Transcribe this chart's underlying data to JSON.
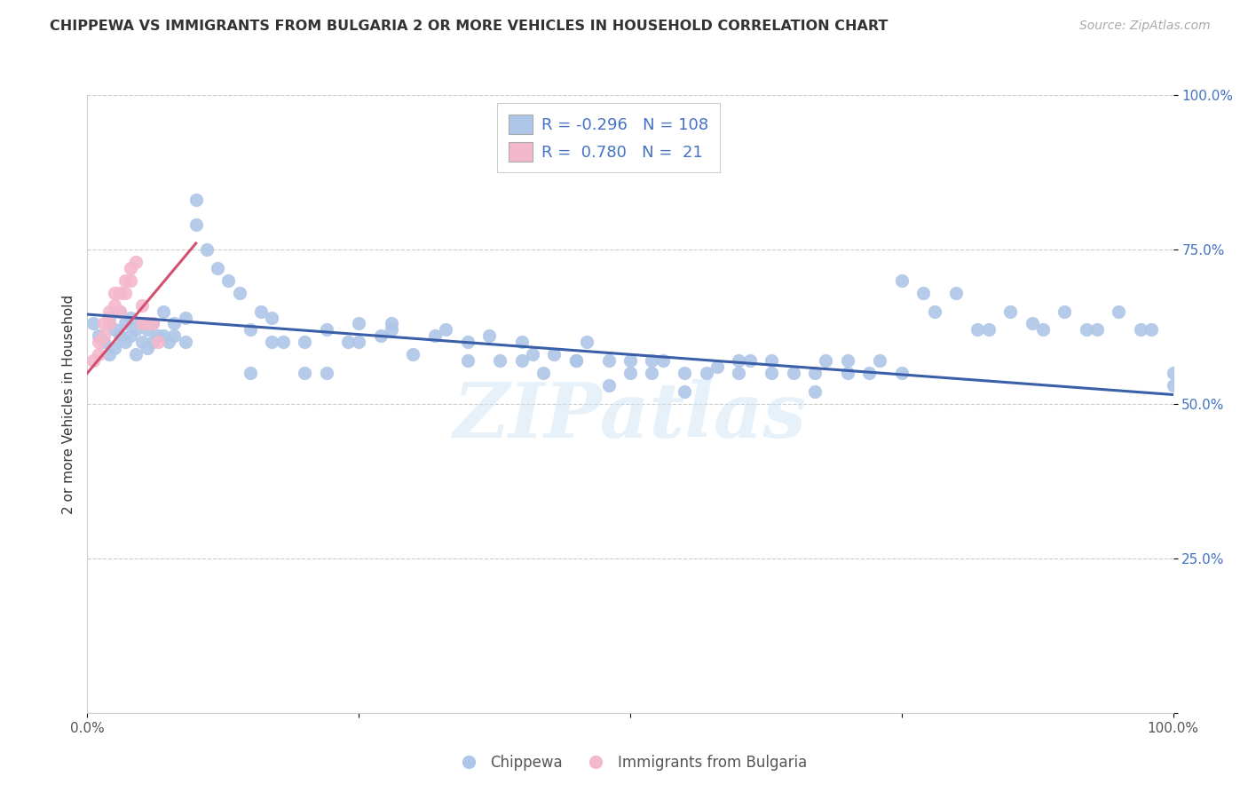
{
  "title": "CHIPPEWA VS IMMIGRANTS FROM BULGARIA 2 OR MORE VEHICLES IN HOUSEHOLD CORRELATION CHART",
  "source": "Source: ZipAtlas.com",
  "ylabel": "2 or more Vehicles in Household",
  "xlim": [
    0.0,
    1.0
  ],
  "ylim": [
    0.0,
    1.0
  ],
  "chippewa_color": "#aec6e8",
  "bulgaria_color": "#f4b8cc",
  "chippewa_line_color": "#3a5fa8",
  "bulgaria_line_color": "#d45070",
  "legend_r1": "-0.296",
  "legend_n1": "108",
  "legend_r2": "0.780",
  "legend_n2": "21",
  "legend_label1": "Chippewa",
  "legend_label2": "Immigrants from Bulgaria",
  "watermark": "ZIPatlas",
  "background_color": "#ffffff",
  "chippewa_x": [
    0.005,
    0.01,
    0.015,
    0.02,
    0.02,
    0.025,
    0.025,
    0.03,
    0.03,
    0.035,
    0.035,
    0.04,
    0.04,
    0.045,
    0.045,
    0.05,
    0.05,
    0.055,
    0.055,
    0.06,
    0.06,
    0.065,
    0.07,
    0.07,
    0.075,
    0.08,
    0.08,
    0.09,
    0.09,
    0.1,
    0.1,
    0.11,
    0.12,
    0.13,
    0.14,
    0.15,
    0.16,
    0.17,
    0.18,
    0.2,
    0.22,
    0.24,
    0.25,
    0.27,
    0.28,
    0.3,
    0.32,
    0.33,
    0.35,
    0.37,
    0.38,
    0.4,
    0.41,
    0.43,
    0.45,
    0.46,
    0.48,
    0.5,
    0.5,
    0.52,
    0.53,
    0.55,
    0.57,
    0.58,
    0.6,
    0.61,
    0.63,
    0.65,
    0.67,
    0.68,
    0.7,
    0.72,
    0.73,
    0.75,
    0.77,
    0.78,
    0.8,
    0.82,
    0.83,
    0.85,
    0.87,
    0.88,
    0.9,
    0.92,
    0.93,
    0.95,
    0.97,
    0.98,
    1.0,
    1.0,
    0.28,
    0.2,
    0.25,
    0.35,
    0.15,
    0.17,
    0.22,
    0.4,
    0.42,
    0.45,
    0.48,
    0.52,
    0.55,
    0.6,
    0.63,
    0.67,
    0.7,
    0.75
  ],
  "chippewa_y": [
    0.63,
    0.61,
    0.6,
    0.64,
    0.58,
    0.62,
    0.59,
    0.65,
    0.61,
    0.63,
    0.6,
    0.64,
    0.61,
    0.62,
    0.58,
    0.63,
    0.6,
    0.62,
    0.59,
    0.63,
    0.6,
    0.61,
    0.65,
    0.61,
    0.6,
    0.63,
    0.61,
    0.64,
    0.6,
    0.83,
    0.79,
    0.75,
    0.72,
    0.7,
    0.68,
    0.62,
    0.65,
    0.64,
    0.6,
    0.6,
    0.62,
    0.6,
    0.63,
    0.61,
    0.63,
    0.58,
    0.61,
    0.62,
    0.6,
    0.61,
    0.57,
    0.6,
    0.58,
    0.58,
    0.57,
    0.6,
    0.57,
    0.57,
    0.55,
    0.57,
    0.57,
    0.55,
    0.55,
    0.56,
    0.57,
    0.57,
    0.57,
    0.55,
    0.55,
    0.57,
    0.57,
    0.55,
    0.57,
    0.7,
    0.68,
    0.65,
    0.68,
    0.62,
    0.62,
    0.65,
    0.63,
    0.62,
    0.65,
    0.62,
    0.62,
    0.65,
    0.62,
    0.62,
    0.55,
    0.53,
    0.62,
    0.55,
    0.6,
    0.57,
    0.55,
    0.6,
    0.55,
    0.57,
    0.55,
    0.57,
    0.53,
    0.55,
    0.52,
    0.55,
    0.55,
    0.52,
    0.55,
    0.55
  ],
  "bulgaria_x": [
    0.005,
    0.01,
    0.01,
    0.015,
    0.015,
    0.02,
    0.02,
    0.025,
    0.025,
    0.03,
    0.03,
    0.035,
    0.035,
    0.04,
    0.04,
    0.045,
    0.05,
    0.05,
    0.055,
    0.06,
    0.065
  ],
  "bulgaria_y": [
    0.57,
    0.6,
    0.58,
    0.63,
    0.61,
    0.65,
    0.63,
    0.68,
    0.66,
    0.65,
    0.68,
    0.7,
    0.68,
    0.72,
    0.7,
    0.73,
    0.63,
    0.66,
    0.63,
    0.63,
    0.6
  ],
  "chippewa_trend_x": [
    0.0,
    1.0
  ],
  "chippewa_trend_y": [
    0.645,
    0.515
  ],
  "bulgaria_trend_x": [
    0.0,
    0.1
  ],
  "bulgaria_trend_y": [
    0.55,
    0.76
  ]
}
